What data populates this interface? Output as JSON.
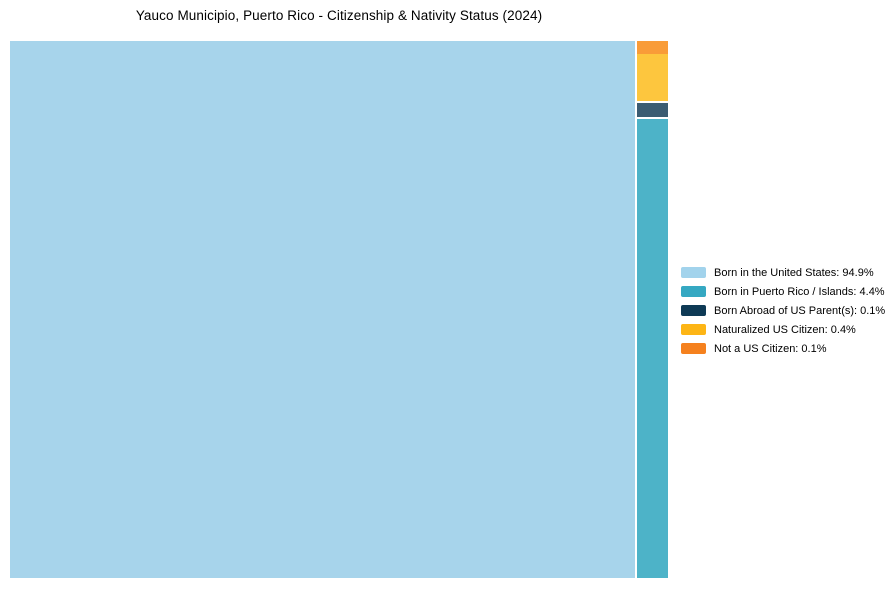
{
  "title": "Yauco Municipio, Puerto Rico - Citizenship & Nativity Status (2024)",
  "chart_data": {
    "type": "treemap",
    "title": "Yauco Municipio, Puerto Rico - Citizenship & Nativity Status (2024)",
    "categories": [
      "Born in the United States",
      "Born in Puerto Rico / Islands",
      "Born Abroad of US Parent(s)",
      "Naturalized US Citizen",
      "Not a US Citizen"
    ],
    "values": [
      94.9,
      4.4,
      0.1,
      0.4,
      0.1
    ],
    "unit": "%",
    "legend_position": "right",
    "legend_labels": [
      "Born in the United States: 94.9%",
      "Born in Puerto Rico / Islands: 4.4%",
      "Born Abroad of US Parent(s): 0.1%",
      "Naturalized US Citizen: 0.4%",
      "Not a US Citizen: 0.1%"
    ],
    "layout_note": "Large cell on left; right column stacked top-to-bottom: Not a US Citizen, Naturalized US Citizen, Born Abroad of US Parent(s), Born in Puerto Rico / Islands"
  },
  "treemap": {
    "cells": [
      {
        "name": "Born in the United States",
        "pct": "94.9%",
        "color": "#a7d4eb"
      },
      {
        "name": "Born in Puerto Rico / Islands",
        "pct": "4.4%",
        "color": "#4db3c8"
      },
      {
        "name": "Born Abroad of US Parent(s)",
        "pct": "0.1%",
        "color": "#3b5c72"
      },
      {
        "name": "Naturalized US Citizen",
        "pct": "0.4%",
        "color": "#fdc63e"
      },
      {
        "name": "Not a US Citizen",
        "pct": "0.1%",
        "color": "#f99c38"
      }
    ]
  },
  "legend": {
    "items": [
      {
        "label": "Born in the United States: 94.9%",
        "color": "#a2d3ec"
      },
      {
        "label": "Born in Puerto Rico / Islands: 4.4%",
        "color": "#35a8c2"
      },
      {
        "label": "Born Abroad of US Parent(s): 0.1%",
        "color": "#0e3a55"
      },
      {
        "label": "Naturalized US Citizen: 0.4%",
        "color": "#fdb515"
      },
      {
        "label": "Not a US Citizen: 0.1%",
        "color": "#f5811e"
      }
    ]
  }
}
